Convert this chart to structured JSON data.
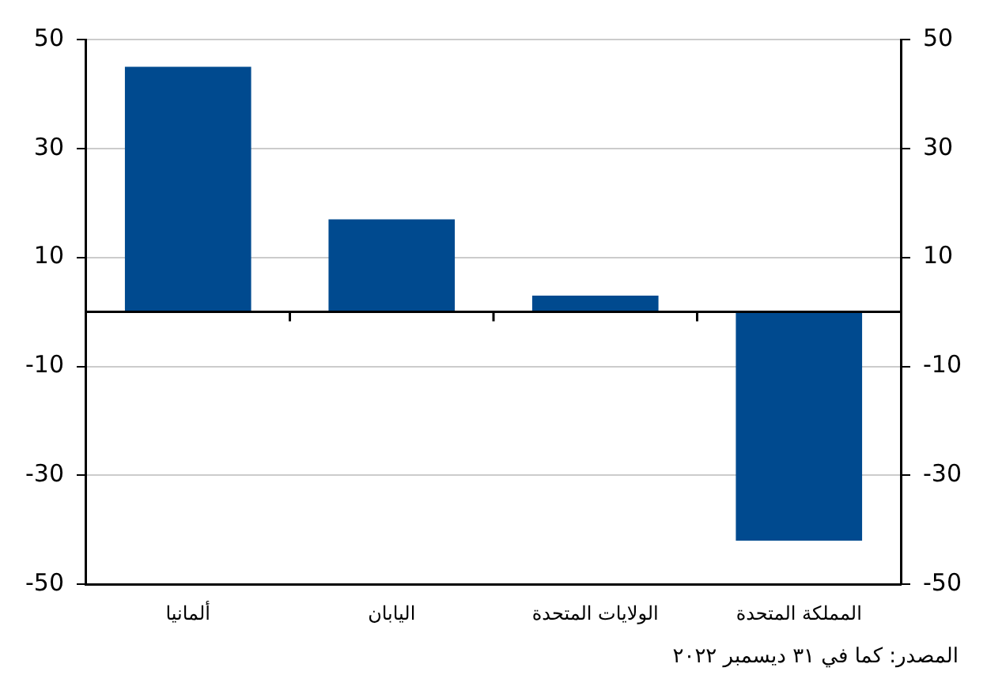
{
  "chart_data": {
    "type": "bar",
    "categories": [
      "ألمانيا",
      "اليابان",
      "الولايات المتحدة",
      "المملكة المتحدة"
    ],
    "values": [
      45,
      17,
      3,
      -42
    ],
    "color": "#004a8f",
    "ylim": [
      -50,
      50
    ],
    "yticks": [
      -50,
      -30,
      -10,
      10,
      30,
      50
    ],
    "y2lim": [
      -50,
      50
    ],
    "y2ticks": [
      -50,
      -30,
      -10,
      10,
      30,
      50
    ],
    "grid": "y",
    "annotations": [
      "المصدر: كما في ٣١ ديسمبر ٢٠٢٢"
    ]
  }
}
